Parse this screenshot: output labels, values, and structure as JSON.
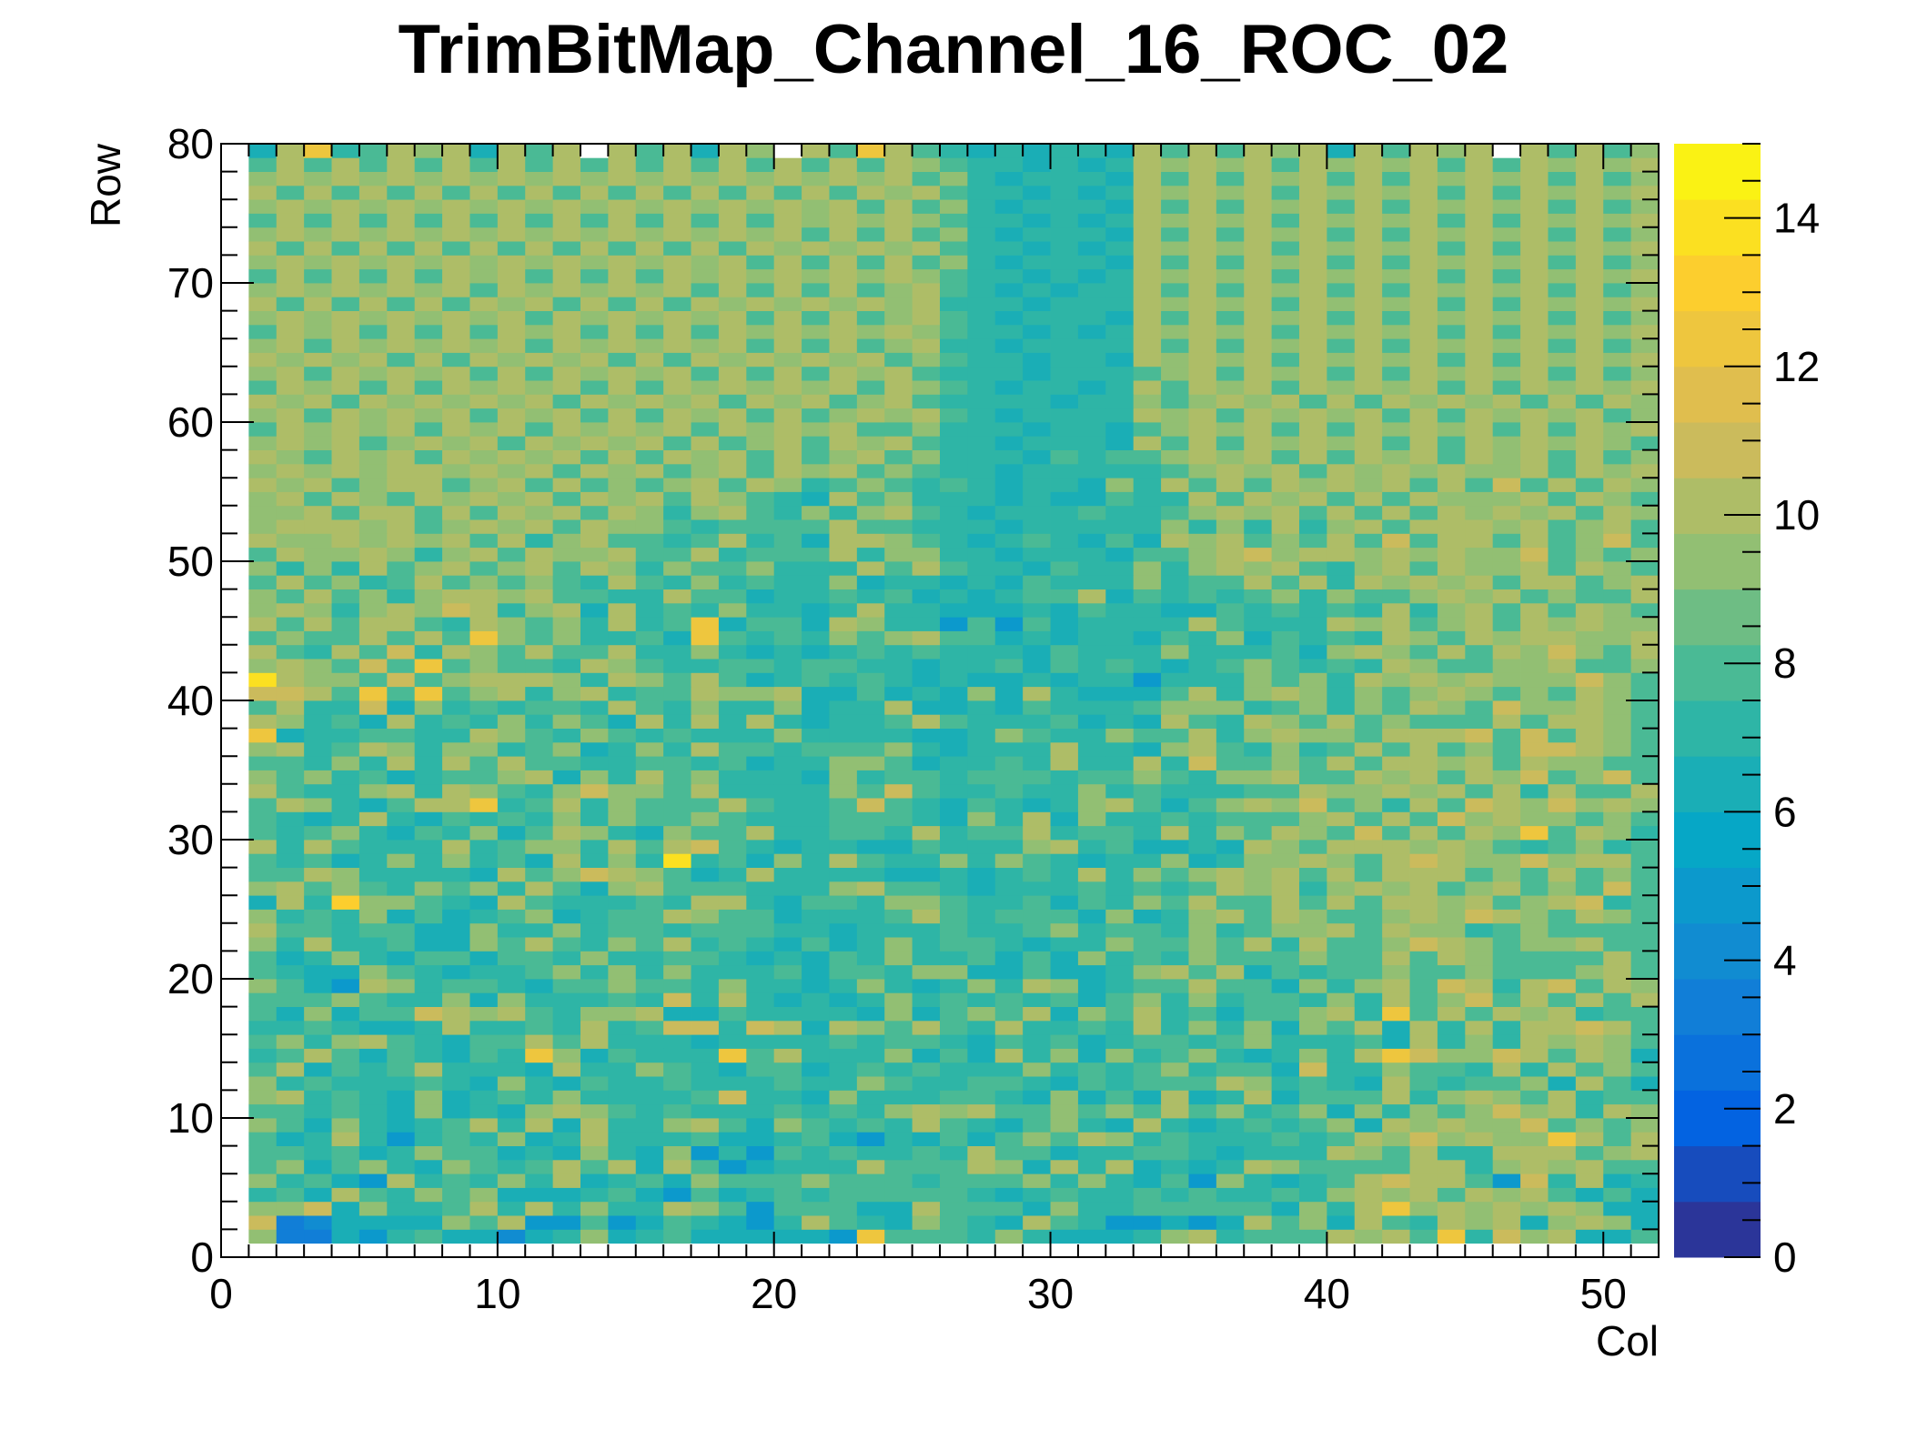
{
  "chart_data": {
    "type": "heatmap",
    "title": "TrimBitMap_Channel_16_ROC_02",
    "xlabel": "Col",
    "ylabel": "Row",
    "xlim": [
      0,
      52
    ],
    "ylim": [
      0,
      80
    ],
    "zlim": [
      0,
      15
    ],
    "x_ticks": [
      0,
      10,
      20,
      30,
      40,
      50
    ],
    "y_ticks": [
      0,
      10,
      20,
      30,
      40,
      50,
      60,
      70,
      80
    ],
    "z_ticks": [
      0,
      2,
      4,
      6,
      8,
      10,
      12,
      14
    ],
    "cols": 51,
    "rows": 79,
    "x_start": 1,
    "y_start": 1,
    "empty_value": 0,
    "colormap": "kBird",
    "colormap_colors": [
      "#352a87",
      "#0363e1",
      "#1485d4",
      "#06a7c6",
      "#38b99e",
      "#92bf73",
      "#d9ba56",
      "#fcce2e",
      "#f9fb0e"
    ],
    "values_encoding": "hex digit per cell, 0-F; rows listed bottom (row 1) to top (row 79), columns 1 to 51 left to right",
    "values": [
      "9336578664679678666665C88879766679A7888A9A8C7B9A668",
      "B34666698A5585687657A8769876A8755656A896A87A9A69A96",
      "99B69778A7A7977A98588866A888697788888697AC9A9A9A966",
      "786A879896667865867878888876787787877879A9A8A9A8686",
      "97865A78797A6786988898887888979768597678ABAA85B7A67",
      "89689769878A8A6A856777A888A96A7A6767A98888AA79A9A88",
      "88786798867697695758787787A886778876777A98A77AAA89A",
      "867A75787967A77786678657686898A978777878A9B9A99CA8A",
      "98697678A7A6A779A8698787A8768976A76787896A9A99B8989",
      "88787696769A987877787879A9A889898A89789697989B9A7A9",
      "9A787696787977778B776977788769686A67A6888A79A98A788",
      "97877787697687787778779877887687888A97876A878896A86",
      "8A6878A7776A77987688678787779787897886B779887A7A898",
      "78A8687687C968777C8A7779686A796978976797ACB99BA8A96",
      "8979A87688A8A77767777878876878678878977786A797A9A98",
      "7787667A7787A78BB7BA6A98A87A7787A7979698A6A7A7AABA8",
      "869688BA9A8799A6687777696898A698A786889A7C8A8A9A788",
      "888987796977787B7A76767978787868979788797A89B8A8A8A",
      "9865A97887688988797767976797A96788A886979A8BA7AB8A9",
      "876698767789797977786887996686679A8A6878898898889A8",
      "86797688688797788767687977868697879888988A8A98888A8",
      "97A7786698A8798A78768679788767798898A7A889BA9899A88",
      "A88788669779788788877677787789788797899A8A997898888",
      "978796867896788A98867778A8788869679A8A9889A9BA98A98",
      "6A7D99876A877787AA7688799877868798A88A8A8AA9A89AB78",
      "9A89879897A869A8887779A887677787878A9A79A9A89A898B8",
      "88A977776A89BA9867A77776676787A7989A9A8A8AAA898A898",
      "87867979786A797E78697A8779798767796799A98ABA99B9AA8",
      "A7A8777A78997A8AB876776687779A786676A98AAA9A9878978",
      "87897687968A976988A77887A788A7887A798A98B8A8A9C8A97",
      "8767A76878797988987778887697A6977878889A8A8B9A99898",
      "8A9768AAC78A79888A8778B87687679A8689A9B897A8BA9B9A9",
      "A8779A7A9879B998A777798B87787797877788A99A9A8A7A88A",
      "9897867889A697A8977769788788878898799A88A9A8A9B89B8",
      "88797A7A8A8877887867799867787A77A7B8898A8AA9A8A9988",
      "9A78A97997896797A887888976777A7769A87978A8A898BBA98",
      "C6778877A9879878777977776679877988A79A998AAAB8B8A98",
      "A9786A78797986A7A7A76778A87778676A87A98A89888A8AA98",
      "8A77B69787887A879779677A667687778999789798A98B99A98",
      "BBA8C8C89A79A788A99A66867696A76668A79A97989A9898A98",
      "EA998B89AAA97A98A86787876766767757779897A9A9A999B98",
      "9A98B8C89887A9877887887767786878767898787A98899A889",
      "A87A8B7A98A88A77976767878777687779777869A98A8A9B98A",
      "8988A8A8C9897786C8787989A8867677687968787A98A9AA99A",
      "A8A8AA87A9897A78C6886A977585867777A8777A9A89A8A9A99",
      "9A979A9BA79A6A78797767A776667687766878787A79A8A8A98",
      "98A8979AA9A8877A88677878676788A687878979889A9A8988A",
      "8A8978A898987A8797877967767687779788A8A7A9A9A8AA89A",
      "9797A89A89A8A979889777A8A8776877979A9A879A8A99A8A98",
      "8A99A979A8A99A88A7888A7997767776889AB9AA9A9A99B8989",
      "A99A9A9A8A79A8878A786AA9876787686A9A898A8B8AA8A89B8",
      "9AAA9A89A9A8A99878888A887776777779797A79A8AAA9A89A8",
      "99A8AA8A8A9A8A979A87979A87677787789A9A8A8A8A9A9A8A9",
      "9A8A98A9A9A8A9A8A9876A897776766877A8A9A8A8A999A8A98",
      "A9A89AA89A8A8989A8A97898787677697A8A8A9A9A8A8B8A8A9",
      "9A9A9AA9A9A8A9A89A8A9A8987767777789A9A8A9A9A99A8A9A",
      "A98A9A8A9A9A8A8A9A8A89A89777687889A9A8A8A9A8A9A8A89",
      "9A9A89A9A8A9A9A8A89A8A9A87767776A8A8A9A9A8A8A9A9A98",
      "8A9A9A8A9A8A9A9A8A9A9A889777677689A9A8A8A9A9A8A8A9A",
      "9A8A9A9A8A9A8A8A9A8A89A9A8767777A9A8A9A9A8A8A9A9A89",
      "A9A8A9A9A9A8A9A9A8A9A89A87777677989A9A8A8A9A9A8A8A9",
      "8A9A8A8A9A9A8A8A9A9A9A8A98767767A8A9A8A9A9A8A8A9A9A",
      "9A8A9A9A8A8A9A9A8A8A8A9A8777677789A8A9A8A8A9A9A8A89",
      "A9A9A8A8A9A9A8A8A9A9A9A898776776A9A9A8A9A9A8A8A9A9A",
      "9A8A9A9A9A8A9A9A9A8A8A89A7767777A8A8A9A8A8A9A9A8A89",
      "8A9A8A8A8A9A8A8A8A9A9A9A98776767A9A9A8A9A9A8A8A9A9A",
      "9A9A9A9A9A8A9A9A9A8A8A89A8767776A8A8A9A8A8A9A9A8A89",
      "A8A8A8A8A9A8A8A8A9A9A9A9A7776777A9A9A8A9A9A8A8A9A9A",
      "9A9A9A9A8A9A9A9A8A8A8A89A8767677A8A8A9A8A8A9A9A8A89",
      "8A8A8A8A9A8A8A8A9A9A9A9A98776767A9A9A8A9A9A8A8A9A9A",
      "9A9A9A9A9A9A9A9A9A8A8A8A89767776A8A8A9A8A8A9A9A8A89",
      "A8A8A8A8A8A8A8A8A8A9A9A9A8776767A9A9A8A9A9A8A8A9A9A",
      "9A9A9A9A9A9A9A9A9A9A8A8A89767776A8A8A9A8A8A9A9A8A89",
      "8A8A8A8A8A8A8A8A8A8A9A9A98776767A9A9A8A9A9A8A8A9A9A",
      "9A9A9A9A9A9A9A9A9A9A9A8A89767776A8A8A9A8A8A9A9A8A89",
      "A8A8A8A8A8A8A8A8A8A8A8A9A8776767A9A9A8A9A9A8A8A9A9A",
      "9A9A9A9A9A9A9A9A9A9A9A9A89767776A8A8A9A8A8A9A9A8A89",
      "8A8A8A8A8A8A8A8A8A8A8A8A98776767A9A9A8A9A9A8A8A9A9A",
      "6AC78A9A6A8A0A8A6A90A8CA87676776A8A8A9A6A8A9A0A8A89"
    ]
  }
}
